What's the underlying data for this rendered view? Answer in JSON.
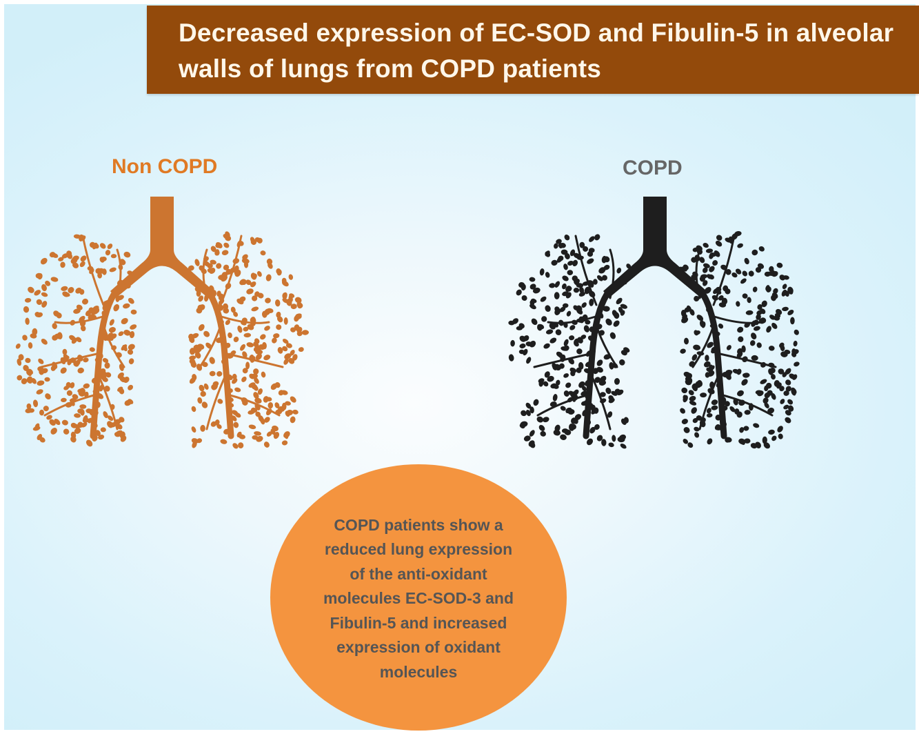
{
  "banner": {
    "title": "Decreased expression of EC-SOD and Fibulin-5 in alveolar walls of lungs from COPD patients",
    "background_color": "#934a0b",
    "text_color": "#fff7ea"
  },
  "panels": [
    {
      "label": "Non COPD",
      "label_color": "#e07a24",
      "lung_color": "#cc7530",
      "icon": "lungs-icon"
    },
    {
      "label": "COPD",
      "label_color": "#666666",
      "lung_color": "#1e1e1e",
      "icon": "lungs-icon"
    }
  ],
  "summary": {
    "text": "COPD patients show a reduced lung expression of the anti-oxidant molecules EC-SOD-3 and Fibulin-5 and  increased expression of oxidant molecules",
    "background_color": "#f4943f",
    "text_color": "#555555"
  },
  "background": {
    "center_color": "#fbfdfe",
    "edge_color": "#d2eff9"
  }
}
